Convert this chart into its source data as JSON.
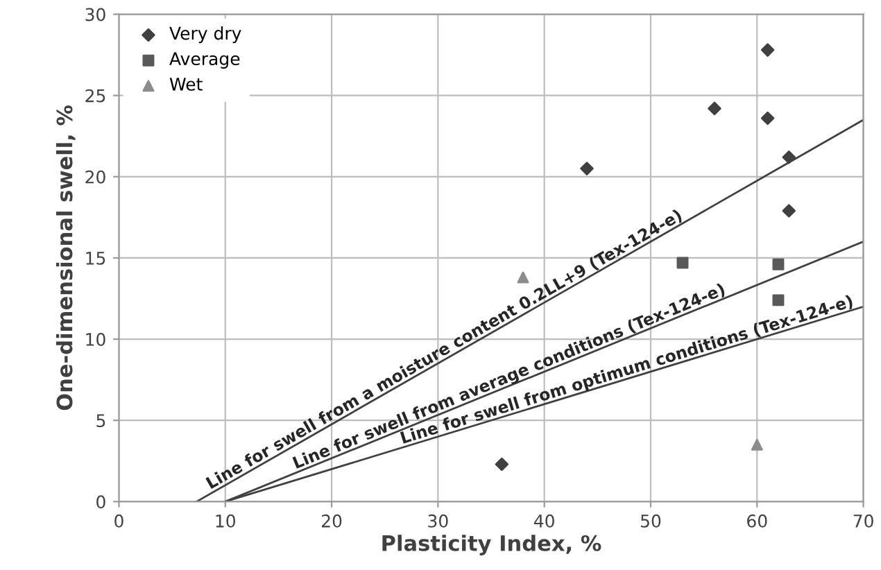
{
  "chart_data": {
    "type": "scatter",
    "xlabel": "Plasticity Index, %",
    "ylabel": "One-dimensional swell, %",
    "xlim": [
      0,
      70
    ],
    "xticks": [
      0,
      10,
      20,
      30,
      40,
      50,
      60,
      70
    ],
    "ylim": [
      0,
      30
    ],
    "yticks": [
      0,
      5,
      10,
      15,
      20,
      25,
      30
    ],
    "grid": true,
    "legend": "top left",
    "series": [
      {
        "name": "Very dry",
        "marker": "diamond",
        "color": "#404040",
        "x": [
          36,
          44,
          56,
          61,
          61,
          63,
          63
        ],
        "values": [
          2.3,
          20.5,
          24.2,
          27.8,
          23.6,
          21.2,
          17.9
        ]
      },
      {
        "name": "Average",
        "marker": "square",
        "color": "#595959",
        "x": [
          53,
          62,
          62
        ],
        "values": [
          14.7,
          14.6,
          12.4
        ]
      },
      {
        "name": "Wet",
        "marker": "triangle",
        "color": "#8c8c8c",
        "x": [
          38,
          60
        ],
        "values": [
          13.8,
          3.5
        ]
      },
      {
        "type": "line",
        "color": "#404040",
        "x": [
          7.3,
          70
        ],
        "values": [
          0,
          23.5
        ]
      },
      {
        "type": "line",
        "color": "#404040",
        "x": [
          10,
          70
        ],
        "values": [
          0,
          16
        ]
      },
      {
        "type": "line",
        "color": "#404040",
        "x": [
          10,
          70
        ],
        "values": [
          0,
          12
        ]
      }
    ],
    "annotations": [
      {
        "text": "Line for swell from a moisture content 0.2LL+9 (Tex-124-e)",
        "x": 31,
        "y": 8.9
      },
      {
        "text": "Line for swell from average conditions (Tex-124-e)",
        "x": 37,
        "y": 7.2
      },
      {
        "text": "Line for swell from optimum conditions (Tex-124-e)",
        "x": 48,
        "y": 7.6
      }
    ]
  }
}
